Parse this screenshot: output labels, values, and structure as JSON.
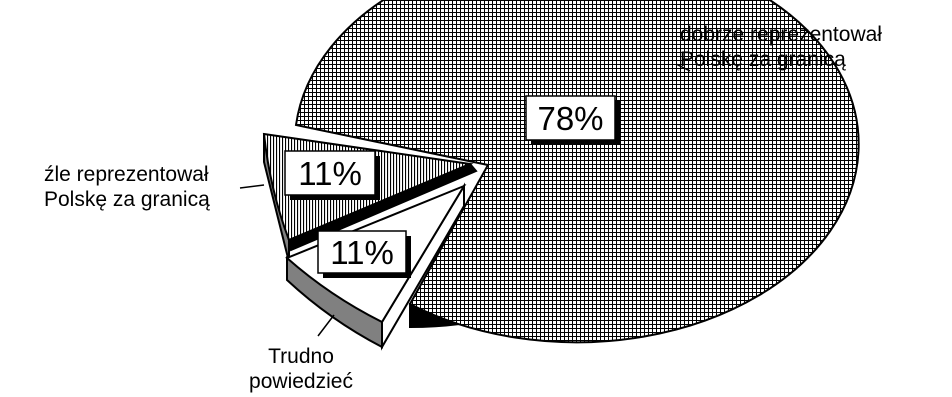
{
  "chart_data": {
    "type": "pie",
    "title": "",
    "exploded_3d": true,
    "slices": [
      {
        "label_lines": [
          "dobrze reprezentował",
          "Polskę za granicą"
        ],
        "value": 78,
        "value_label": "78%",
        "pattern": "fine-grid"
      },
      {
        "label_lines": [
          "źle reprezentował",
          "Polskę za granicą"
        ],
        "value": 11,
        "value_label": "11%",
        "pattern": "vertical-lines"
      },
      {
        "label_lines": [
          "Trudno",
          "powiedzieć"
        ],
        "value": 11,
        "value_label": "11%",
        "pattern": "white"
      }
    ]
  }
}
